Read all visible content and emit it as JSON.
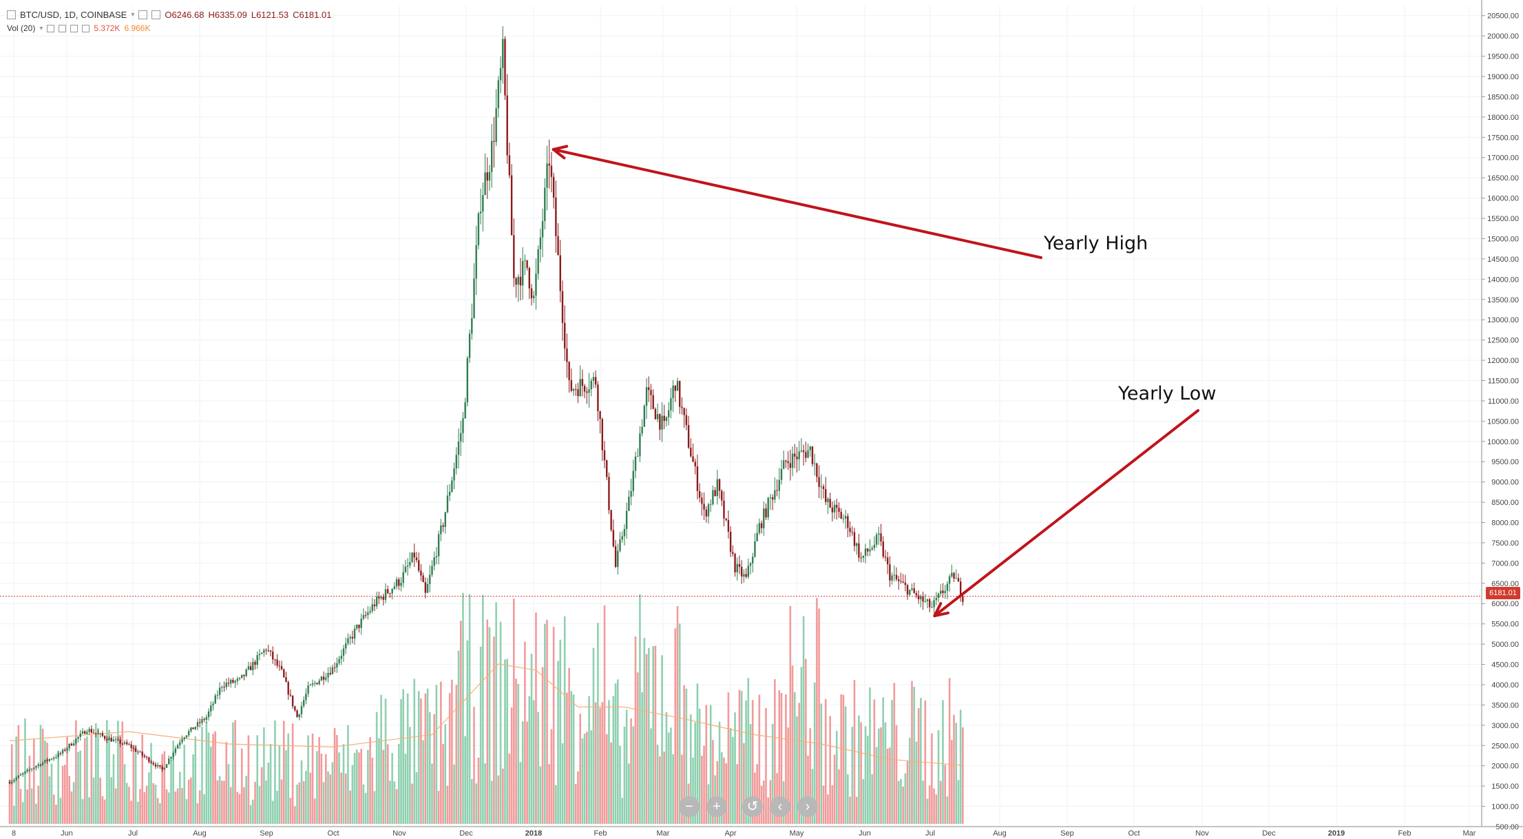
{
  "header": {
    "symbol_line": "BTC/USD, 1D, COINBASE",
    "open": "O6246.68",
    "high": "H6335.09",
    "low": "L6121.53",
    "close": "C6181.01",
    "vol_label": "Vol (20)",
    "vol_value": "5.372K",
    "vol_ma": "6.966K"
  },
  "annotations": {
    "high_label": "Yearly High",
    "low_label": "Yearly Low"
  },
  "price_tag": "6181.01",
  "nav_buttons": [
    "−",
    "+",
    "↺",
    "‹",
    "›"
  ],
  "colors": {
    "up": "#26a69a",
    "up_body": "#2e7d4f",
    "down": "#8b1a1a",
    "vol_up": "#8fd0b0",
    "vol_down": "#f29a9a",
    "annotation": "#c0141c",
    "price_line": "#e03030",
    "vol_ma_line": "#f5b07a",
    "grid": "#eef1f4"
  },
  "chart_data": {
    "type": "candlestick",
    "title": "BTC/USD, 1D, COINBASE",
    "xlabel": "",
    "ylabel": "",
    "ylim": [
      500,
      20750
    ],
    "y_ticks": [
      500,
      1000,
      1500,
      2000,
      2500,
      3000,
      3500,
      4000,
      4500,
      5000,
      5500,
      6000,
      6500,
      7000,
      7500,
      8000,
      8500,
      9000,
      9500,
      10000,
      10500,
      11000,
      11500,
      12000,
      12500,
      13000,
      13500,
      14000,
      14500,
      15000,
      15500,
      16000,
      16500,
      17000,
      17500,
      18000,
      18500,
      19000,
      19500,
      20000,
      20500
    ],
    "x_ticks": [
      "8",
      "Jun",
      "Jul",
      "Aug",
      "Sep",
      "Oct",
      "Nov",
      "Dec",
      "2018",
      "Feb",
      "Mar",
      "Apr",
      "May",
      "Jun",
      "Jul",
      "Aug",
      "Sep",
      "Oct",
      "Nov",
      "Dec",
      "2019",
      "Feb",
      "Mar"
    ],
    "last_price": 6181.01,
    "grid": true,
    "price_path": [
      [
        "2017-05-08",
        1600
      ],
      [
        "2017-05-20",
        2000
      ],
      [
        "2017-05-31",
        2300
      ],
      [
        "2017-06-12",
        2900
      ],
      [
        "2017-06-20",
        2700
      ],
      [
        "2017-07-01",
        2500
      ],
      [
        "2017-07-16",
        1900
      ],
      [
        "2017-07-25",
        2700
      ],
      [
        "2017-08-05",
        3200
      ],
      [
        "2017-08-12",
        4000
      ],
      [
        "2017-08-20",
        4100
      ],
      [
        "2017-09-01",
        4900
      ],
      [
        "2017-09-08",
        4300
      ],
      [
        "2017-09-15",
        3200
      ],
      [
        "2017-09-20",
        3900
      ],
      [
        "2017-10-01",
        4400
      ],
      [
        "2017-10-12",
        5400
      ],
      [
        "2017-10-20",
        6000
      ],
      [
        "2017-11-01",
        6600
      ],
      [
        "2017-11-07",
        7200
      ],
      [
        "2017-11-12",
        6200
      ],
      [
        "2017-11-20",
        8000
      ],
      [
        "2017-11-29",
        10500
      ],
      [
        "2017-12-07",
        16000
      ],
      [
        "2017-12-12",
        17200
      ],
      [
        "2017-12-17",
        19500
      ],
      [
        "2017-12-22",
        14000
      ],
      [
        "2017-12-28",
        14300
      ],
      [
        "2017-12-31",
        13500
      ],
      [
        "2018-01-07",
        17000
      ],
      [
        "2018-01-16",
        11300
      ],
      [
        "2018-01-28",
        11500
      ],
      [
        "2018-02-06",
        6900
      ],
      [
        "2018-02-12",
        8500
      ],
      [
        "2018-02-20",
        11200
      ],
      [
        "2018-02-28",
        10300
      ],
      [
        "2018-03-05",
        11500
      ],
      [
        "2018-03-18",
        8200
      ],
      [
        "2018-03-24",
        8900
      ],
      [
        "2018-04-01",
        6900
      ],
      [
        "2018-04-06",
        6600
      ],
      [
        "2018-04-12",
        7900
      ],
      [
        "2018-04-24",
        9500
      ],
      [
        "2018-05-05",
        9800
      ],
      [
        "2018-05-12",
        8500
      ],
      [
        "2018-05-22",
        8000
      ],
      [
        "2018-05-28",
        7100
      ],
      [
        "2018-06-05",
        7600
      ],
      [
        "2018-06-10",
        6700
      ],
      [
        "2018-06-24",
        6100
      ],
      [
        "2018-06-29",
        5900
      ],
      [
        "2018-07-09",
        6700
      ],
      [
        "2018-07-13",
        6181
      ]
    ],
    "volume_ma_path": [
      [
        "2017-05-08",
        1350
      ],
      [
        "2017-07-01",
        1500
      ],
      [
        "2017-08-15",
        1300
      ],
      [
        "2017-10-01",
        1250
      ],
      [
        "2017-11-15",
        1450
      ],
      [
        "2017-12-15",
        2600
      ],
      [
        "2018-01-01",
        2500
      ],
      [
        "2018-01-20",
        1900
      ],
      [
        "2018-02-10",
        1900
      ],
      [
        "2018-03-10",
        1700
      ],
      [
        "2018-04-10",
        1450
      ],
      [
        "2018-05-10",
        1300
      ],
      [
        "2018-06-10",
        1050
      ],
      [
        "2018-07-13",
        950
      ]
    ],
    "annotations": [
      {
        "label": "Yearly High",
        "points_to": [
          "2018-01-07",
          17200
        ]
      },
      {
        "label": "Yearly Low",
        "points_to": [
          "2018-06-29",
          5800
        ]
      }
    ]
  }
}
